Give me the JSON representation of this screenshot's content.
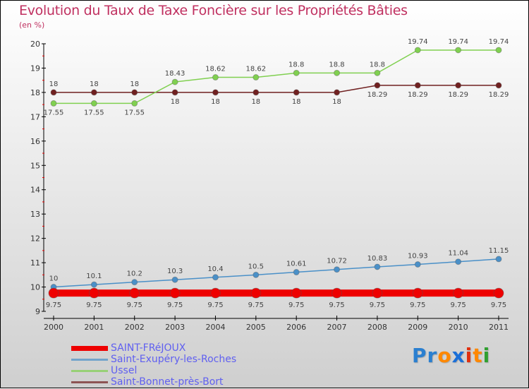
{
  "chart_data": {
    "type": "line",
    "title": "Evolution du Taux de Taxe Foncière sur les Propriétés Bâties",
    "subtitle": "(en %)",
    "x": [
      "2000",
      "2001",
      "2002",
      "2003",
      "2004",
      "2005",
      "2006",
      "2007",
      "2008",
      "2009",
      "2010",
      "2011"
    ],
    "ylim": [
      9,
      20
    ],
    "yticks": [
      "9",
      "10",
      "11",
      "12",
      "13",
      "14",
      "15",
      "16",
      "17",
      "18",
      "19",
      "20"
    ],
    "legend_position": "bottom-left",
    "series": [
      {
        "name": "SAINT-FRéJOUX",
        "color": "#ee0000",
        "width": 10,
        "values": [
          9.75,
          9.75,
          9.75,
          9.75,
          9.75,
          9.75,
          9.75,
          9.75,
          9.75,
          9.75,
          9.75,
          9.75
        ],
        "labels": [
          "9.75",
          "9.75",
          "9.75",
          "9.75",
          "9.75",
          "9.75",
          "9.75",
          "9.75",
          "9.75",
          "9.75",
          "9.75",
          "9.75"
        ]
      },
      {
        "name": "Saint-Exupéry-les-Roches",
        "color": "#4a90c8",
        "width": 1.5,
        "values": [
          10,
          10.1,
          10.2,
          10.3,
          10.4,
          10.5,
          10.61,
          10.72,
          10.83,
          10.93,
          11.04,
          11.15
        ],
        "labels": [
          "10",
          "10.1",
          "10.2",
          "10.3",
          "10.4",
          "10.5",
          "10.61",
          "10.72",
          "10.83",
          "10.93",
          "11.04",
          "11.15"
        ]
      },
      {
        "name": "Ussel",
        "color": "#80d050",
        "width": 1.5,
        "values": [
          17.55,
          17.55,
          17.55,
          18.43,
          18.62,
          18.62,
          18.8,
          18.8,
          18.8,
          19.74,
          19.74,
          19.74
        ],
        "labels": [
          "17.55",
          "17.55",
          "17.55",
          "18.43",
          "18.62",
          "18.62",
          "18.8",
          "18.8",
          "18.8",
          "19.74",
          "19.74",
          "19.74"
        ]
      },
      {
        "name": "Saint-Bonnet-près-Bort",
        "color": "#702020",
        "width": 1.5,
        "values": [
          18,
          18,
          18,
          18,
          18,
          18,
          18,
          18,
          18.29,
          18.29,
          18.29,
          18.29
        ],
        "labels": [
          "18",
          "18",
          "18",
          "18",
          "18",
          "18",
          "18",
          "18",
          "18.29",
          "18.29",
          "18.29",
          "18.29"
        ]
      }
    ]
  },
  "logo": {
    "text": "Proxiti",
    "letters": [
      "P",
      "r",
      "o",
      "x",
      "i",
      "t",
      "i"
    ],
    "colors": [
      "#2a7fd0",
      "#2a7fd0",
      "#ff8800",
      "#1a6fd8",
      "#e03010",
      "#ff8800",
      "#30a030"
    ]
  }
}
